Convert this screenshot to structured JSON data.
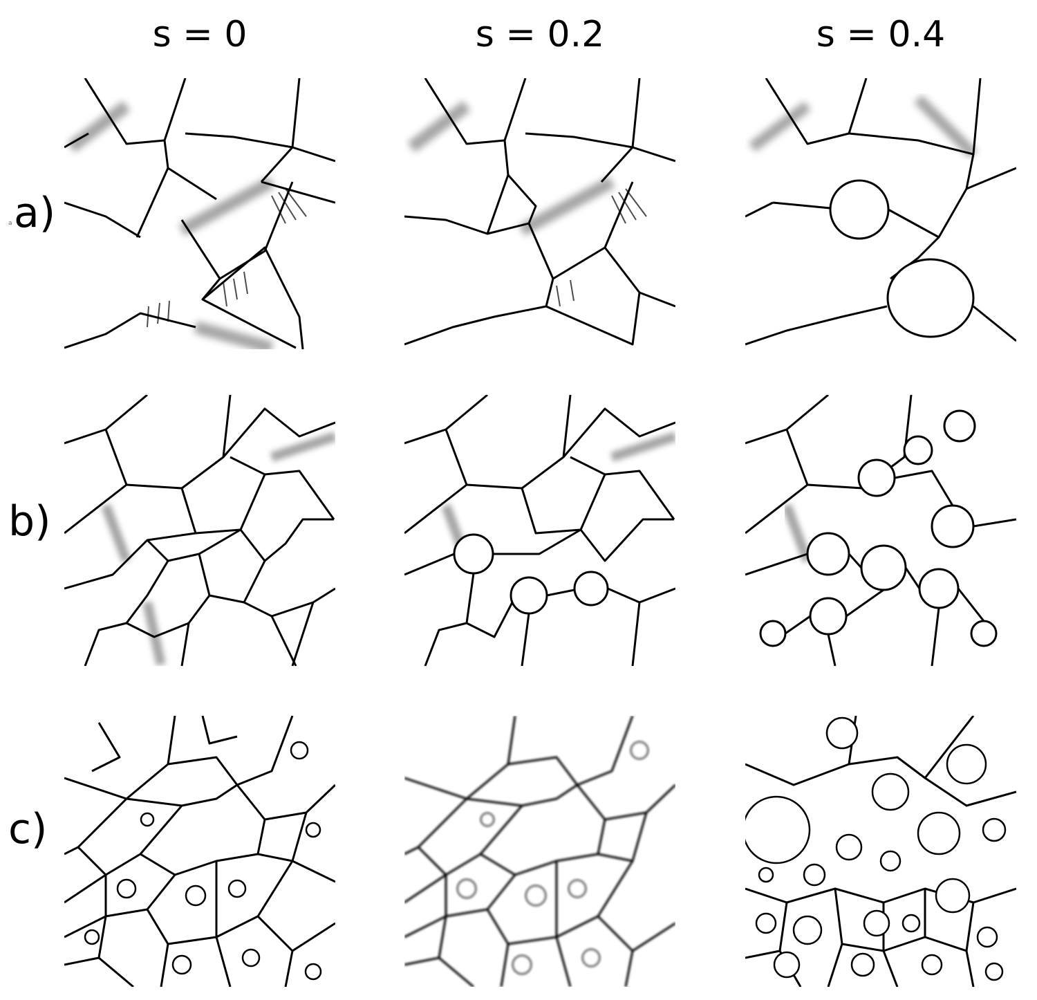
{
  "columns": [
    {
      "label": "s = 0"
    },
    {
      "label": "s = 0.2"
    },
    {
      "label": "s = 0.4"
    }
  ],
  "rows": [
    {
      "label": "a)"
    },
    {
      "label": "b)"
    },
    {
      "label": "c)"
    }
  ],
  "small_mark": "a",
  "colors": {
    "background": "#ffffff",
    "boundary": "#000000"
  }
}
